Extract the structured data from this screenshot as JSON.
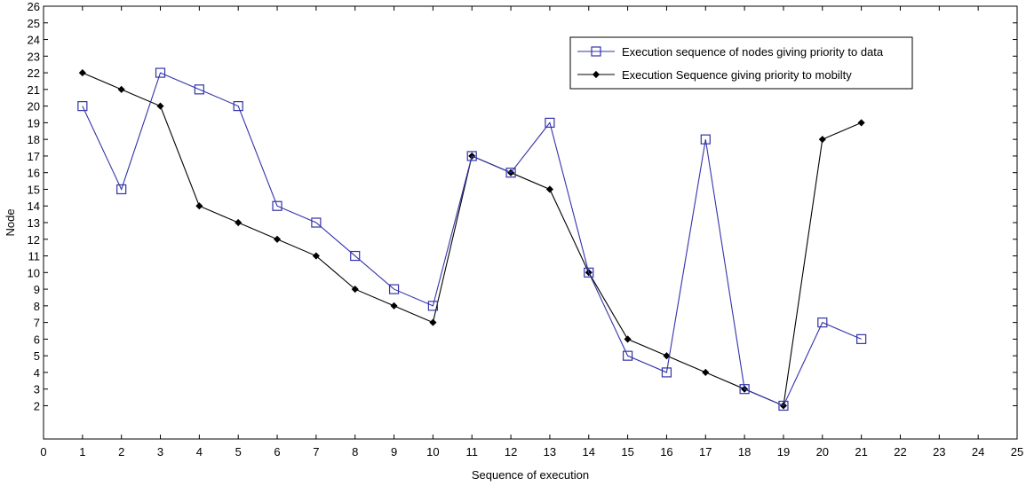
{
  "chart_data": {
    "type": "line",
    "title": "",
    "xlabel": "Sequence of execution",
    "ylabel": "Node",
    "xlim": [
      0,
      25
    ],
    "ylim": [
      0,
      26
    ],
    "xticks": [
      0,
      1,
      2,
      3,
      4,
      5,
      6,
      7,
      8,
      9,
      10,
      11,
      12,
      13,
      14,
      15,
      16,
      17,
      18,
      19,
      20,
      21,
      22,
      23,
      24,
      25
    ],
    "yticks": [
      2,
      3,
      4,
      5,
      6,
      7,
      8,
      9,
      10,
      11,
      12,
      13,
      14,
      15,
      16,
      17,
      18,
      19,
      20,
      21,
      22,
      23,
      24,
      25,
      26
    ],
    "grid": false,
    "legend_position": "top-right",
    "x": [
      1,
      2,
      3,
      4,
      5,
      6,
      7,
      8,
      9,
      10,
      11,
      12,
      13,
      14,
      15,
      16,
      17,
      18,
      19,
      20,
      21
    ],
    "series": [
      {
        "name": "Execution sequence of nodes giving priority to data",
        "color": "#3333aa",
        "marker": "square",
        "values": [
          20,
          15,
          22,
          21,
          20,
          14,
          13,
          11,
          9,
          8,
          17,
          16,
          19,
          10,
          5,
          4,
          18,
          3,
          2,
          7,
          6
        ]
      },
      {
        "name": "Execution Sequence giving priority to mobilty",
        "color": "#000000",
        "marker": "diamond",
        "values": [
          22,
          21,
          20,
          14,
          13,
          12,
          11,
          9,
          8,
          7,
          17,
          16,
          15,
          10,
          6,
          5,
          4,
          3,
          2,
          18,
          19
        ]
      }
    ]
  }
}
